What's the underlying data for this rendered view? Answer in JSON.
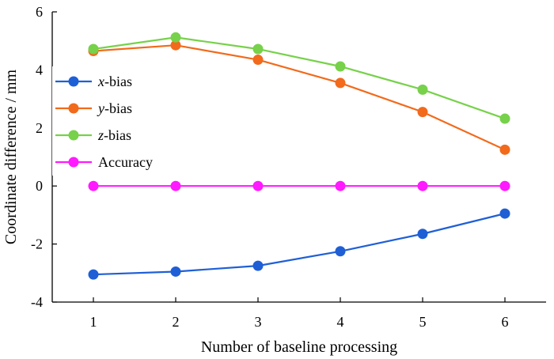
{
  "chart_data": {
    "type": "line",
    "title": "",
    "xlabel": "Number of baseline processing",
    "ylabel": "Coordinate difference / mm",
    "x": [
      1,
      2,
      3,
      4,
      5,
      6
    ],
    "xlim": [
      0.5,
      6.5
    ],
    "ylim": [
      -4,
      6
    ],
    "xticks": [
      1,
      2,
      3,
      4,
      5,
      6
    ],
    "yticks": [
      -4,
      -2,
      0,
      2,
      4,
      6
    ],
    "yticklabels": [
      "-4",
      "-2",
      "0",
      "2",
      "4",
      "6"
    ],
    "legend_position": "upper-left",
    "grid": false,
    "series": [
      {
        "name": "x-bias",
        "prefix": "x",
        "suffix": "-bias",
        "italic_prefix": true,
        "color": "#1f5fd6",
        "values": [
          -3.05,
          -2.95,
          -2.75,
          -2.25,
          -1.65,
          -0.95
        ]
      },
      {
        "name": "y-bias",
        "prefix": "y",
        "suffix": "-bias",
        "italic_prefix": true,
        "color": "#f26a1b",
        "values": [
          4.65,
          4.85,
          4.35,
          3.55,
          2.55,
          1.25
        ]
      },
      {
        "name": "z-bias",
        "prefix": "z",
        "suffix": "-bias",
        "italic_prefix": true,
        "color": "#77d14a",
        "values": [
          4.72,
          5.12,
          4.72,
          4.12,
          3.32,
          2.32
        ]
      },
      {
        "name": "Accuracy",
        "prefix": "",
        "suffix": "Accuracy",
        "italic_prefix": false,
        "color": "#ff1aff",
        "values": [
          0,
          0,
          0,
          0,
          0,
          0
        ]
      }
    ]
  }
}
